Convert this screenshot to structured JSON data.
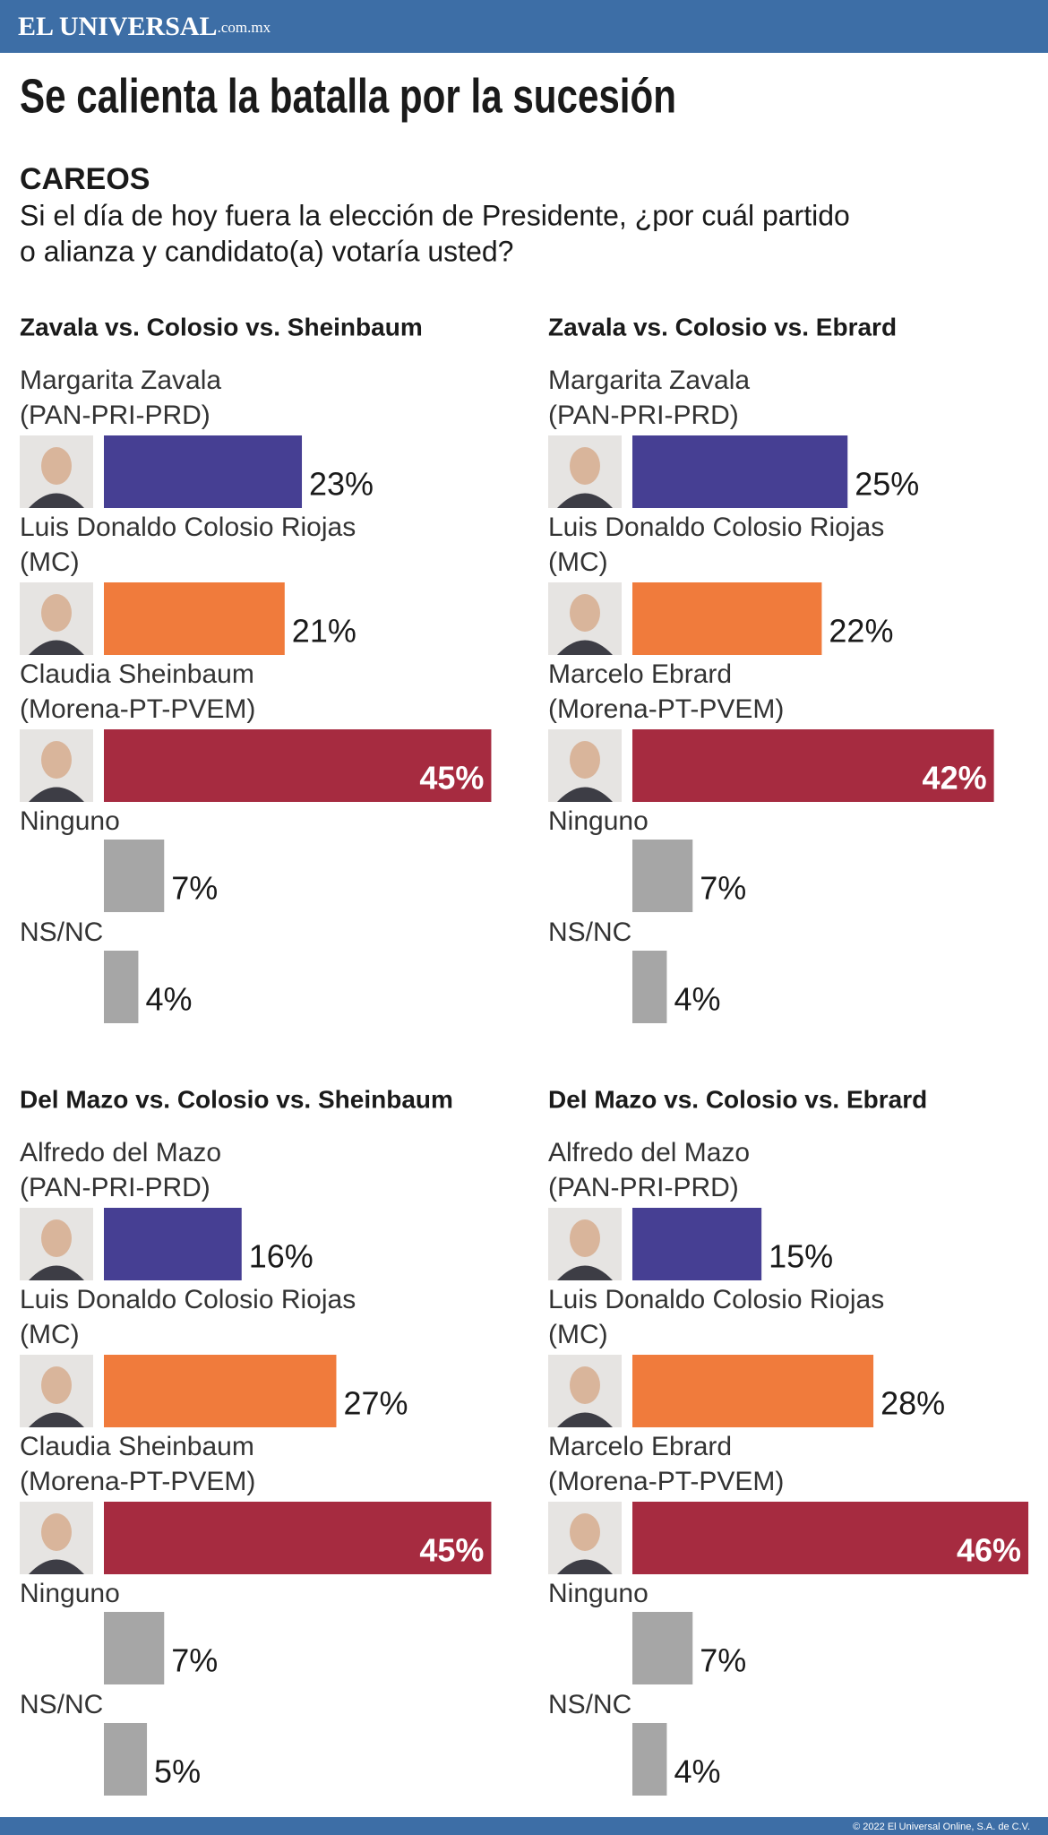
{
  "header": {
    "brand": "EL UNIVERSAL",
    "domain": ".com.mx"
  },
  "title": "Se calienta la batalla por la sucesión",
  "section": "CAREOS",
  "question_lines": [
    "Si el día de hoy fuera la elección de Presidente, ¿por cuál partido",
    "o alianza y candidato(a) votaría usted?"
  ],
  "chart_data": [
    {
      "type": "bar",
      "orientation": "horizontal",
      "title": "Zavala vs. Colosio vs. Sheinbaum",
      "categories": [
        "Margarita Zavala",
        "Luis Donaldo Colosio Riojas",
        "Claudia Sheinbaum",
        "Ninguno",
        "NS/NC"
      ],
      "parties": [
        "(PAN-PRI-PRD)",
        "(MC)",
        "(Morena-PT-PVEM)",
        null,
        null
      ],
      "values": [
        23,
        21,
        45,
        7,
        4
      ],
      "value_labels": [
        "23%",
        "21%",
        "45%",
        "7%",
        "4%"
      ],
      "colors": [
        "#463f93",
        "#f07b3c",
        "#a62b40",
        "#a6a6a6",
        "#a6a6a6"
      ]
    },
    {
      "type": "bar",
      "orientation": "horizontal",
      "title": "Zavala vs. Colosio vs. Ebrard",
      "categories": [
        "Margarita Zavala",
        "Luis Donaldo Colosio Riojas",
        "Marcelo Ebrard",
        "Ninguno",
        "NS/NC"
      ],
      "parties": [
        "(PAN-PRI-PRD)",
        "(MC)",
        "(Morena-PT-PVEM)",
        null,
        null
      ],
      "values": [
        25,
        22,
        42,
        7,
        4
      ],
      "value_labels": [
        "25%",
        "22%",
        "42%",
        "7%",
        "4%"
      ],
      "colors": [
        "#463f93",
        "#f07b3c",
        "#a62b40",
        "#a6a6a6",
        "#a6a6a6"
      ]
    },
    {
      "type": "bar",
      "orientation": "horizontal",
      "title": "Del Mazo vs. Colosio vs. Sheinbaum",
      "categories": [
        "Alfredo del Mazo",
        "Luis Donaldo Colosio Riojas",
        "Claudia Sheinbaum",
        "Ninguno",
        "NS/NC"
      ],
      "parties": [
        "(PAN-PRI-PRD)",
        "(MC)",
        "(Morena-PT-PVEM)",
        null,
        null
      ],
      "values": [
        16,
        27,
        45,
        7,
        5
      ],
      "value_labels": [
        "16%",
        "27%",
        "45%",
        "7%",
        "5%"
      ],
      "colors": [
        "#463f93",
        "#f07b3c",
        "#a62b40",
        "#a6a6a6",
        "#a6a6a6"
      ]
    },
    {
      "type": "bar",
      "orientation": "horizontal",
      "title": "Del Mazo vs. Colosio vs. Ebrard",
      "categories": [
        "Alfredo del Mazo",
        "Luis Donaldo Colosio Riojas",
        "Marcelo Ebrard",
        "Ninguno",
        "NS/NC"
      ],
      "parties": [
        "(PAN-PRI-PRD)",
        "(MC)",
        "(Morena-PT-PVEM)",
        null,
        null
      ],
      "values": [
        15,
        28,
        46,
        7,
        4
      ],
      "value_labels": [
        "15%",
        "28%",
        "46%",
        "7%",
        "4%"
      ],
      "colors": [
        "#463f93",
        "#f07b3c",
        "#a62b40",
        "#a6a6a6",
        "#a6a6a6"
      ]
    }
  ],
  "footer": "© 2022 El Universal Online, S.A. de C.V."
}
